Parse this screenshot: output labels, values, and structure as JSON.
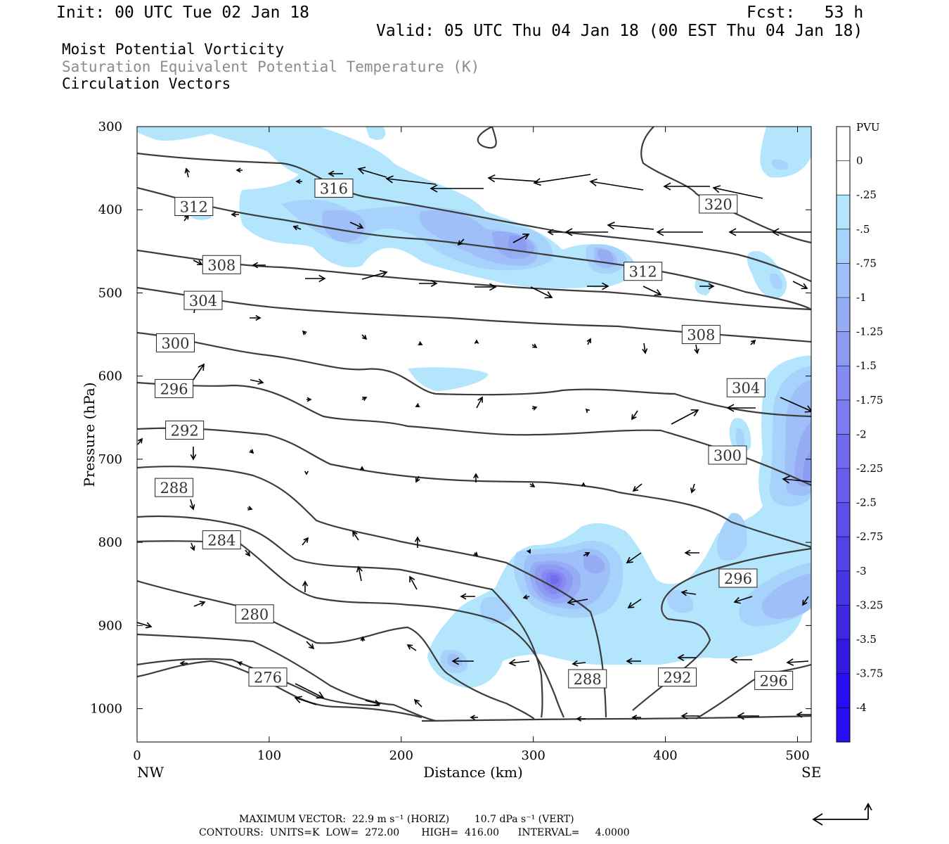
{
  "header": {
    "init": "Init: 00 UTC Tue 02 Jan 18",
    "fcst": "Fcst:   53 h",
    "valid": "Valid: 05 UTC Thu 04 Jan 18 (00 EST Thu 04 Jan 18)",
    "line1": "Moist Potential Vorticity",
    "line2": "Saturation Equivalent Potential Temperature (K)",
    "line3": "Circulation Vectors"
  },
  "footer": {
    "max_vector": "MAXIMUM VECTOR:  22.9 m s⁻¹ (HORIZ)        10.7 dPa s⁻¹ (VERT)",
    "contours": "CONTOURS:  UNITS=K  LOW=  272.00       HIGH=  416.00      INTERVAL=     4.0000"
  },
  "colors": {
    "contour": "#3c3c3c",
    "pv_shades": [
      "#ffffff",
      "#ffffff",
      "#b3e5fc",
      "#a6d2fb",
      "#9fbff8",
      "#96adf6",
      "#8d9cf3",
      "#858bf2",
      "#7c7bf0",
      "#726bee",
      "#695bec",
      "#5f4dea",
      "#5541e8",
      "#4a35e6",
      "#3f27e4",
      "#3318e2",
      "#2a0cf5"
    ]
  },
  "chart_data": {
    "type": "cross-section",
    "xlabel": "Distance (km)",
    "ylabel": "Pressure (hPa)",
    "x_end_labels": [
      "NW",
      "SE"
    ],
    "xlim": [
      0,
      512
    ],
    "ylim": [
      1040,
      300
    ],
    "xticks": [
      0,
      100,
      200,
      300,
      400,
      500
    ],
    "yticks": [
      300,
      400,
      500,
      600,
      700,
      800,
      900,
      1000
    ],
    "colorbar": {
      "unit": "PVU",
      "levels": [
        "0",
        "-.25",
        "-.5",
        "-.75",
        "-1",
        "-1.25",
        "-1.5",
        "-1.75",
        "-2",
        "-2.25",
        "-2.5",
        "-2.75",
        "-3",
        "-3.25",
        "-3.5",
        "-3.75",
        "-4"
      ]
    },
    "contour_labels": [
      {
        "text": "316",
        "x": 149,
        "p": 374
      },
      {
        "text": "312",
        "x": 43,
        "p": 396
      },
      {
        "text": "320",
        "x": 440,
        "p": 393
      },
      {
        "text": "308",
        "x": 64,
        "p": 466
      },
      {
        "text": "312",
        "x": 383,
        "p": 474
      },
      {
        "text": "304",
        "x": 50,
        "p": 509
      },
      {
        "text": "308",
        "x": 427,
        "p": 550
      },
      {
        "text": "300",
        "x": 29,
        "p": 560
      },
      {
        "text": "304",
        "x": 461,
        "p": 614
      },
      {
        "text": "296",
        "x": 28,
        "p": 615
      },
      {
        "text": "292",
        "x": 36,
        "p": 665
      },
      {
        "text": "300",
        "x": 447,
        "p": 695
      },
      {
        "text": "288",
        "x": 28,
        "p": 734
      },
      {
        "text": "284",
        "x": 64,
        "p": 797
      },
      {
        "text": "296",
        "x": 455,
        "p": 843
      },
      {
        "text": "280",
        "x": 89,
        "p": 886
      },
      {
        "text": "276",
        "x": 99,
        "p": 962
      },
      {
        "text": "288",
        "x": 341,
        "p": 964
      },
      {
        "text": "292",
        "x": 409,
        "p": 962
      },
      {
        "text": "296",
        "x": 482,
        "p": 966
      }
    ]
  }
}
